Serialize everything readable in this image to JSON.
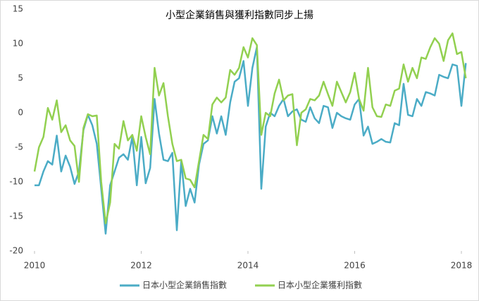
{
  "chart_data": {
    "type": "line",
    "title": "小型企業銷售與獲利指數同步上揚",
    "x": [
      2010,
      2010.083,
      2010.167,
      2010.25,
      2010.333,
      2010.417,
      2010.5,
      2010.583,
      2010.667,
      2010.75,
      2010.833,
      2010.917,
      2011,
      2011.083,
      2011.167,
      2011.25,
      2011.333,
      2011.417,
      2011.5,
      2011.583,
      2011.667,
      2011.75,
      2011.833,
      2011.917,
      2012,
      2012.083,
      2012.167,
      2012.25,
      2012.333,
      2012.417,
      2012.5,
      2012.583,
      2012.667,
      2012.75,
      2012.833,
      2012.917,
      2013,
      2013.083,
      2013.167,
      2013.25,
      2013.333,
      2013.417,
      2013.5,
      2013.583,
      2013.667,
      2013.75,
      2013.833,
      2013.917,
      2014,
      2014.083,
      2014.167,
      2014.25,
      2014.333,
      2014.417,
      2014.5,
      2014.583,
      2014.667,
      2014.75,
      2014.833,
      2014.917,
      2015,
      2015.083,
      2015.167,
      2015.25,
      2015.333,
      2015.417,
      2015.5,
      2015.583,
      2015.667,
      2015.75,
      2015.833,
      2015.917,
      2016,
      2016.083,
      2016.167,
      2016.25,
      2016.333,
      2016.417,
      2016.5,
      2016.583,
      2016.667,
      2016.75,
      2016.833,
      2016.917,
      2017,
      2017.083,
      2017.167,
      2017.25,
      2017.333,
      2017.417,
      2017.5,
      2017.583,
      2017.667,
      2017.75,
      2017.833,
      2017.917,
      2018,
      2018.083
    ],
    "series": [
      {
        "name": "日本小型企業銷售指數",
        "color": "#4bacc6",
        "values": [
          -10.5,
          -10.5,
          -8.5,
          -7,
          -7.5,
          -3.3,
          -8.5,
          -6.2,
          -7.8,
          -10.3,
          -8.5,
          -2.5,
          -0.3,
          -1.8,
          -4.5,
          -11,
          -17.5,
          -10.5,
          -8.5,
          -6.5,
          -6,
          -6.8,
          -3.5,
          -10.5,
          -3.5,
          -10.2,
          -8,
          2,
          -3,
          -6.8,
          -7,
          -5.8,
          -17,
          -7,
          -13.5,
          -11,
          -13,
          -7.5,
          -4.5,
          -4,
          -0.5,
          -3,
          -0.5,
          -3.2,
          1.5,
          4.5,
          5,
          7.5,
          1,
          6.5,
          9.5,
          -11,
          -2,
          0,
          -0.5,
          1,
          2,
          -0.5,
          0.2,
          0.5,
          -1,
          -1.3,
          0.8,
          -0.8,
          -1.5,
          1,
          0.8,
          -2.2,
          0,
          -0.5,
          -0.8,
          -1,
          1.2,
          2,
          -3.3,
          -2,
          -4.5,
          -4.2,
          -3.8,
          -4.2,
          -4.3,
          -1.5,
          -1.8,
          4.2,
          -0.3,
          -0.5,
          2,
          1,
          3,
          2.8,
          2.5,
          5.5,
          5.2,
          5,
          7,
          6.8,
          1,
          7.2
        ]
      },
      {
        "name": "日本小型企業獲利指數",
        "color": "#92d050",
        "values": [
          -8.5,
          -5,
          -3.5,
          0.7,
          -1,
          1.8,
          -2.8,
          -1.8,
          -4,
          -4.8,
          -10,
          -2.2,
          -0.2,
          -0.5,
          -0.4,
          -10,
          -16,
          -13,
          -4.5,
          -5.2,
          -1.2,
          -4,
          -3.2,
          -5.5,
          -0.5,
          -3.5,
          -6,
          6.5,
          2.5,
          4.3,
          -0.5,
          -4.5,
          -7,
          -6.8,
          -9.5,
          -9.7,
          -10.8,
          -7,
          -3.2,
          -3.8,
          1.2,
          2.2,
          1.5,
          2.2,
          6.2,
          5.5,
          6.5,
          9.5,
          8,
          10.8,
          9.8,
          -3.2,
          0,
          -0.5,
          2.8,
          4.8,
          1.8,
          2.5,
          2.7,
          -4.7,
          0,
          0.5,
          2,
          1.8,
          2.5,
          4.5,
          2.7,
          1,
          4.5,
          3,
          1.5,
          3,
          5.8,
          2,
          0.3,
          6.5,
          0.8,
          -0.5,
          -0.6,
          1.2,
          1,
          3.2,
          3.5,
          7,
          4.5,
          6.5,
          5,
          8,
          7.8,
          9.5,
          10.8,
          10,
          7.5,
          10.5,
          11.5,
          8.5,
          8.8,
          5
        ]
      }
    ],
    "xlim": [
      2010,
      2018
    ],
    "xticks": [
      2010,
      2012,
      2014,
      2016,
      2018
    ],
    "ylim": [
      -20,
      15
    ],
    "yticks": [
      -20,
      -15,
      -10,
      -5,
      0,
      5,
      10,
      15
    ],
    "grid": false,
    "legend": "bottom"
  }
}
